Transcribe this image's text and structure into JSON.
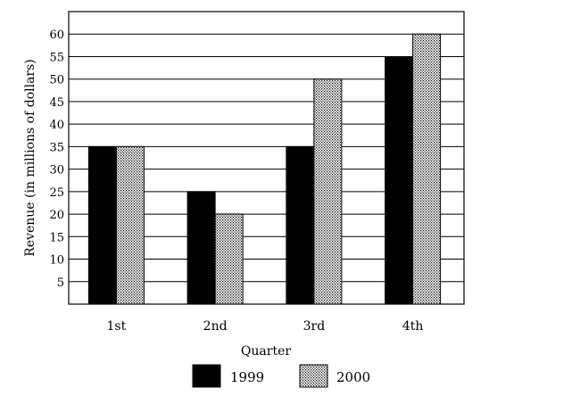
{
  "chart_data": {
    "type": "bar",
    "categories": [
      "1st",
      "2nd",
      "3rd",
      "4th"
    ],
    "series": [
      {
        "name": "1999",
        "values": [
          35,
          25,
          35,
          55
        ],
        "fill": "solid-black"
      },
      {
        "name": "2000",
        "values": [
          35,
          20,
          50,
          60
        ],
        "fill": "dotted-gray"
      }
    ],
    "xlabel": "Quarter",
    "ylabel": "Revenue (in millions of dollars)",
    "ylim": [
      0,
      65
    ],
    "yticks": [
      5,
      10,
      15,
      20,
      25,
      30,
      35,
      40,
      45,
      50,
      55,
      60
    ],
    "grid": "horizontal",
    "legend_placement": "bottom-center",
    "colors": {
      "series_1999": "#000000",
      "series_2000_dots": "#000000",
      "background": "#ffffff"
    }
  }
}
